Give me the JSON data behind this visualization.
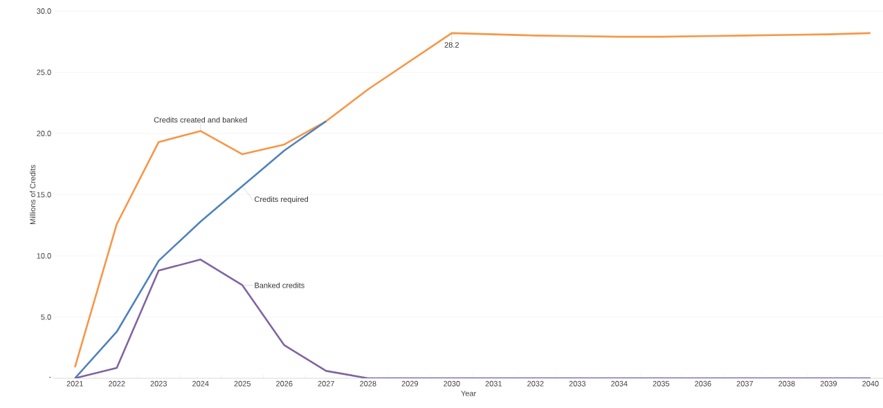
{
  "chart_data": {
    "type": "line",
    "xlabel": "Year",
    "ylabel": "Millions of Credits",
    "categories": [
      "2021",
      "2022",
      "2023",
      "2024",
      "2025",
      "2026",
      "2027",
      "2028",
      "2029",
      "2030",
      "2031",
      "2032",
      "2033",
      "2034",
      "2035",
      "2036",
      "2037",
      "2038",
      "2039",
      "2040"
    ],
    "series": [
      {
        "name": "Credits created and banked",
        "color": "#f79646",
        "values": [
          0.9,
          12.6,
          19.3,
          20.2,
          18.3,
          19.1,
          21.0,
          23.6,
          25.9,
          28.2,
          28.1,
          28.0,
          27.95,
          27.9,
          27.9,
          27.95,
          28.0,
          28.05,
          28.1,
          28.2
        ],
        "value_labels": [
          null,
          null,
          null,
          null,
          null,
          null,
          null,
          null,
          null,
          "28.2",
          null,
          null,
          null,
          null,
          null,
          null,
          null,
          null,
          null,
          null
        ]
      },
      {
        "name": "Credits required",
        "color": "#4f81bd",
        "values": [
          0,
          3.8,
          9.6,
          12.8,
          15.7,
          18.6,
          21.0,
          null,
          null,
          null,
          null,
          null,
          null,
          null,
          null,
          null,
          null,
          null,
          null,
          null
        ]
      },
      {
        "name": "Banked credits",
        "color": "#8064a2",
        "values": [
          0,
          0.85,
          8.8,
          9.7,
          7.6,
          2.7,
          0.6,
          0,
          0,
          0,
          0,
          0,
          0,
          0,
          0,
          0,
          0,
          0,
          0,
          0
        ]
      }
    ],
    "ylim": [
      0,
      30
    ],
    "yticks": [
      {
        "value": 0,
        "label": "-"
      },
      {
        "value": 5,
        "label": "5.0"
      },
      {
        "value": 10,
        "label": "10.0"
      },
      {
        "value": 15,
        "label": "15.0"
      },
      {
        "value": 20,
        "label": "20.0"
      },
      {
        "value": 25,
        "label": "25.0"
      },
      {
        "value": 30,
        "label": "30.0"
      }
    ],
    "grid": "y"
  }
}
